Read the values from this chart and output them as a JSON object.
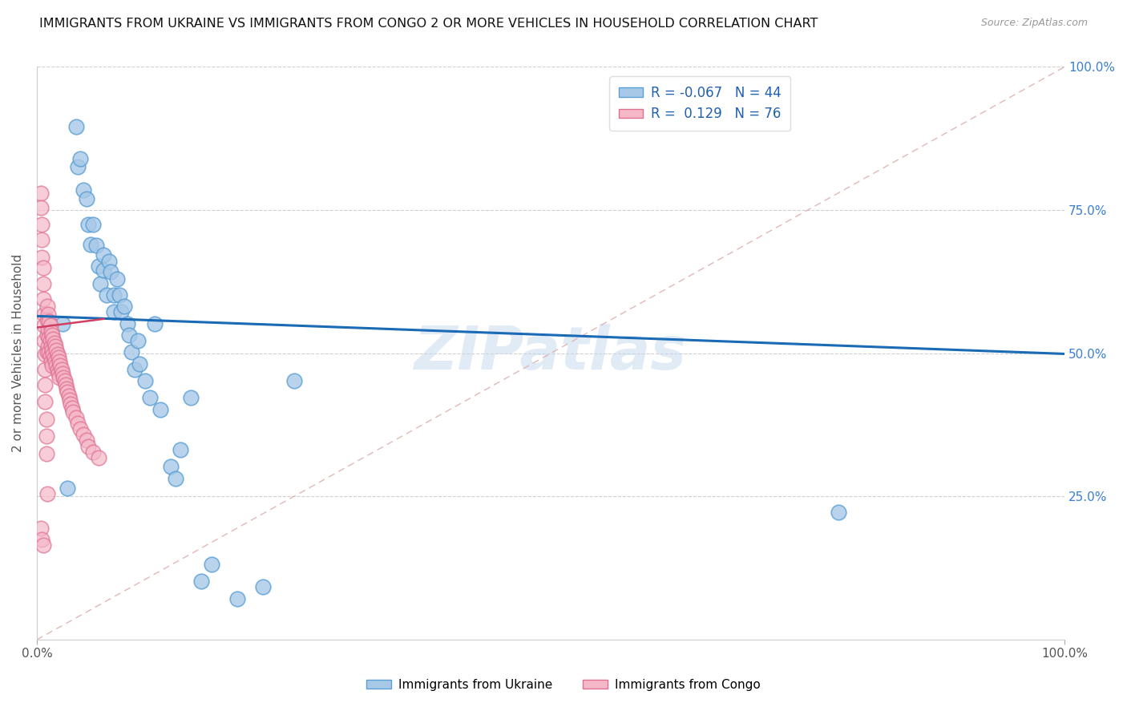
{
  "title": "IMMIGRANTS FROM UKRAINE VS IMMIGRANTS FROM CONGO 2 OR MORE VEHICLES IN HOUSEHOLD CORRELATION CHART",
  "source": "Source: ZipAtlas.com",
  "ylabel": "2 or more Vehicles in Household",
  "xlim": [
    0,
    1.0
  ],
  "ylim": [
    0,
    1.0
  ],
  "xtick_labels": [
    "0.0%",
    "100.0%"
  ],
  "xtick_vals": [
    0.0,
    1.0
  ],
  "ytick_vals": [
    0.25,
    0.5,
    0.75,
    1.0
  ],
  "right_ytick_labels": [
    "25.0%",
    "50.0%",
    "75.0%",
    "100.0%"
  ],
  "ukraine_color": "#a8c8e8",
  "ukraine_edge": "#5a9fd4",
  "congo_color": "#f5b8c8",
  "congo_edge": "#e07090",
  "ukraine_R": -0.067,
  "ukraine_N": 44,
  "congo_R": 0.129,
  "congo_N": 76,
  "ukraine_line_color": "#1a6ab5",
  "congo_line_color": "#d04060",
  "diagonal_color": "#e0b0b0",
  "legend_label_ukraine": "Immigrants from Ukraine",
  "legend_label_congo": "Immigrants from Congo",
  "ukraine_x": [
    0.03,
    0.038,
    0.04,
    0.042,
    0.045,
    0.048,
    0.05,
    0.052,
    0.055,
    0.058,
    0.06,
    0.062,
    0.065,
    0.065,
    0.068,
    0.07,
    0.072,
    0.075,
    0.075,
    0.078,
    0.08,
    0.082,
    0.085,
    0.088,
    0.09,
    0.092,
    0.095,
    0.098,
    0.1,
    0.105,
    0.11,
    0.115,
    0.12,
    0.13,
    0.135,
    0.14,
    0.15,
    0.16,
    0.17,
    0.195,
    0.22,
    0.25,
    0.78,
    0.025
  ],
  "ukraine_y": [
    0.265,
    0.895,
    0.825,
    0.84,
    0.785,
    0.77,
    0.725,
    0.69,
    0.725,
    0.688,
    0.652,
    0.622,
    0.672,
    0.645,
    0.602,
    0.66,
    0.642,
    0.602,
    0.572,
    0.63,
    0.602,
    0.572,
    0.582,
    0.552,
    0.532,
    0.502,
    0.472,
    0.522,
    0.482,
    0.452,
    0.422,
    0.552,
    0.402,
    0.302,
    0.282,
    0.332,
    0.422,
    0.102,
    0.132,
    0.072,
    0.092,
    0.452,
    0.222,
    0.552
  ],
  "congo_x": [
    0.004,
    0.004,
    0.005,
    0.005,
    0.005,
    0.006,
    0.006,
    0.006,
    0.007,
    0.007,
    0.007,
    0.008,
    0.008,
    0.008,
    0.008,
    0.009,
    0.009,
    0.009,
    0.01,
    0.01,
    0.01,
    0.01,
    0.011,
    0.011,
    0.011,
    0.012,
    0.012,
    0.012,
    0.013,
    0.013,
    0.013,
    0.014,
    0.014,
    0.014,
    0.015,
    0.015,
    0.015,
    0.016,
    0.016,
    0.017,
    0.017,
    0.018,
    0.018,
    0.019,
    0.019,
    0.02,
    0.02,
    0.021,
    0.021,
    0.022,
    0.022,
    0.023,
    0.024,
    0.025,
    0.026,
    0.027,
    0.028,
    0.029,
    0.03,
    0.031,
    0.032,
    0.033,
    0.034,
    0.035,
    0.038,
    0.04,
    0.042,
    0.045,
    0.048,
    0.05,
    0.055,
    0.06,
    0.004,
    0.005,
    0.006,
    0.01
  ],
  "congo_y": [
    0.78,
    0.755,
    0.725,
    0.698,
    0.668,
    0.65,
    0.622,
    0.595,
    0.568,
    0.548,
    0.522,
    0.498,
    0.472,
    0.445,
    0.415,
    0.385,
    0.355,
    0.325,
    0.582,
    0.558,
    0.532,
    0.502,
    0.568,
    0.542,
    0.512,
    0.555,
    0.528,
    0.502,
    0.548,
    0.522,
    0.495,
    0.538,
    0.512,
    0.485,
    0.532,
    0.505,
    0.478,
    0.525,
    0.498,
    0.518,
    0.492,
    0.512,
    0.485,
    0.505,
    0.478,
    0.498,
    0.472,
    0.492,
    0.465,
    0.485,
    0.458,
    0.478,
    0.472,
    0.465,
    0.458,
    0.452,
    0.445,
    0.438,
    0.432,
    0.425,
    0.418,
    0.412,
    0.405,
    0.398,
    0.388,
    0.378,
    0.368,
    0.358,
    0.348,
    0.338,
    0.328,
    0.318,
    0.195,
    0.175,
    0.165,
    0.255
  ]
}
